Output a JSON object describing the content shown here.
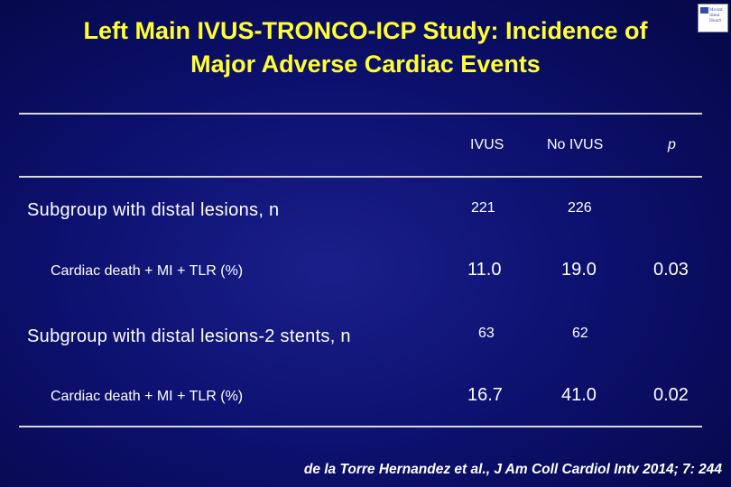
{
  "slide": {
    "title_line1": "Left Main IVUS-TRONCO-ICP Study: Incidence of",
    "title_line2": "Major Adverse Cardiac Events",
    "title_color": "#ffff33",
    "background_color": "#0d1170",
    "logo_icon": "institution-logo-icon",
    "logo_text": "Mount Sinai Heart"
  },
  "table": {
    "headers": {
      "col1": "IVUS",
      "col2": "No IVUS",
      "col3": "p"
    },
    "rows": [
      {
        "label": "Subgroup with distal lesions, n",
        "ivus": "221",
        "no_ivus": "226",
        "p": ""
      },
      {
        "label": "Cardiac death + MI + TLR (%)",
        "ivus": "11.0",
        "no_ivus": "19.0",
        "p": "0.03"
      },
      {
        "label": "Subgroup with distal lesions-2 stents, n",
        "ivus": "63",
        "no_ivus": "62",
        "p": ""
      },
      {
        "label": "Cardiac death + MI + TLR (%)",
        "ivus": "16.7",
        "no_ivus": "41.0",
        "p": "0.02"
      }
    ]
  },
  "citation": "de la Torre Hernandez et al., J Am Coll Cardiol Intv 2014; 7: 244"
}
